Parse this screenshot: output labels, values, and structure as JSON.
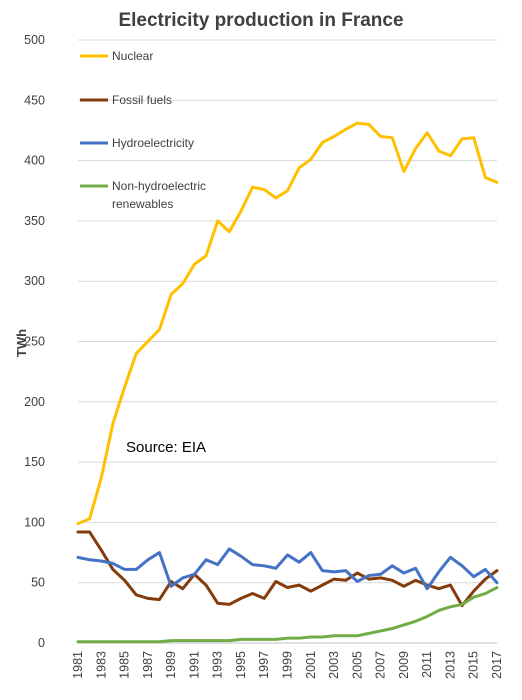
{
  "chart_data": {
    "type": "line",
    "title": "Electricity production in France",
    "ylabel": "TWh",
    "xlabel": "",
    "ylim": [
      0,
      500
    ],
    "yticks": [
      0,
      50,
      100,
      150,
      200,
      250,
      300,
      350,
      400,
      450,
      500
    ],
    "x": [
      1981,
      1982,
      1983,
      1984,
      1985,
      1986,
      1987,
      1988,
      1989,
      1990,
      1991,
      1992,
      1993,
      1994,
      1995,
      1996,
      1997,
      1998,
      1999,
      2000,
      2001,
      2002,
      2003,
      2004,
      2005,
      2006,
      2007,
      2008,
      2009,
      2010,
      2011,
      2012,
      2013,
      2014,
      2015,
      2016,
      2017
    ],
    "xtick_labels": [
      "1981",
      "1983",
      "1985",
      "1987",
      "1989",
      "1991",
      "1993",
      "1995",
      "1997",
      "1999",
      "2001",
      "2003",
      "2005",
      "2007",
      "2009",
      "2011",
      "2013",
      "2015",
      "2017"
    ],
    "grid": true,
    "legend_position": "top-left",
    "annotation": "Source: EIA",
    "series": [
      {
        "name": "Nuclear",
        "color": "#FFC000",
        "values": [
          99,
          103,
          137,
          182,
          212,
          240,
          250,
          260,
          289,
          298,
          314,
          321,
          350,
          341,
          358,
          378,
          376,
          369,
          375,
          394,
          401,
          415,
          420,
          426,
          431,
          430,
          420,
          419,
          391,
          410,
          423,
          408,
          404,
          418,
          419,
          386,
          382
        ]
      },
      {
        "name": "Fossil fuels",
        "color": "#843C0C",
        "values": [
          92,
          92,
          77,
          61,
          52,
          40,
          37,
          36,
          51,
          45,
          57,
          48,
          33,
          32,
          37,
          41,
          37,
          51,
          46,
          48,
          43,
          48,
          53,
          52,
          58,
          53,
          54,
          52,
          47,
          52,
          48,
          45,
          48,
          31,
          43,
          53,
          60
        ]
      },
      {
        "name": "Hydroelectricity",
        "color": "#4472C4",
        "values": [
          71,
          69,
          68,
          66,
          61,
          61,
          69,
          75,
          47,
          54,
          57,
          69,
          65,
          78,
          72,
          65,
          64,
          62,
          73,
          67,
          75,
          60,
          59,
          60,
          51,
          56,
          57,
          64,
          58,
          62,
          45,
          59,
          71,
          64,
          55,
          61,
          50
        ]
      },
      {
        "name": "Non-hydroelectric renewables",
        "color": "#70AD47",
        "values": [
          1,
          1,
          1,
          1,
          1,
          1,
          1,
          1,
          2,
          2,
          2,
          2,
          2,
          2,
          3,
          3,
          3,
          3,
          4,
          4,
          5,
          5,
          6,
          6,
          6,
          8,
          10,
          12,
          15,
          18,
          22,
          27,
          30,
          32,
          38,
          41,
          46
        ]
      }
    ]
  },
  "legend": [
    {
      "lines": [
        "Nuclear"
      ]
    },
    {
      "lines": [
        "Fossil fuels"
      ]
    },
    {
      "lines": [
        "Hydroelectricity"
      ]
    },
    {
      "lines": [
        "Non-hydroelectric",
        "renewables"
      ]
    }
  ]
}
